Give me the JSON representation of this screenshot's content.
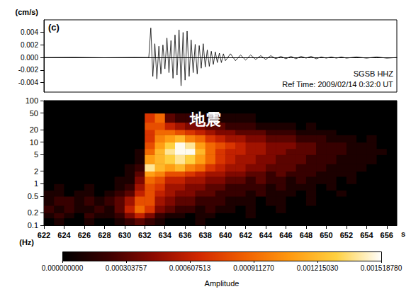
{
  "chart_data": [
    {
      "type": "line",
      "title": "(c)",
      "ylabel": "(cm/s)",
      "annotations": [
        "SGSB HHZ",
        "Ref Time: 2009/02/14 0:32:0 UT"
      ],
      "color": "#000000",
      "grid": false,
      "tick_labels": "y",
      "xlim": [
        622,
        657
      ],
      "ylim": [
        -0.0055,
        0.006
      ],
      "yticks": [
        -0.004,
        -0.002,
        {
          "value": 0,
          "label": "0.000"
        },
        0.002,
        0.004
      ],
      "x": [
        622,
        625,
        628,
        631,
        632.4,
        632.6,
        632.8,
        633.0,
        633.2,
        633.4,
        633.6,
        633.8,
        634.0,
        634.2,
        634.4,
        634.6,
        634.8,
        635.0,
        635.2,
        635.4,
        635.6,
        635.8,
        636.0,
        636.2,
        636.4,
        636.6,
        636.8,
        637.0,
        637.2,
        637.4,
        637.6,
        637.8,
        638.0,
        638.2,
        638.4,
        638.6,
        638.8,
        639.0,
        639.2,
        639.4,
        639.6,
        639.8,
        640.0,
        640.5,
        641.0,
        641.5,
        642.0,
        642.5,
        643.0,
        643.5,
        644.0,
        644.5,
        645.0,
        645.5,
        646.0,
        646.5,
        647.0,
        647.5,
        648.0,
        648.5,
        649.0,
        649.5,
        650.0,
        650.5,
        651.0,
        651.5,
        652.0,
        653.0,
        654.0,
        655.0,
        656.0,
        657.0
      ],
      "values": [
        0,
        3e-05,
        -3e-05,
        2e-05,
        0,
        0.0047,
        -0.003,
        0.0022,
        -0.0034,
        0.0018,
        -0.0026,
        0.002,
        -0.0018,
        0.0031,
        -0.0024,
        0.0027,
        -0.0033,
        0.0036,
        -0.0028,
        0.0044,
        -0.0045,
        0.004,
        -0.0036,
        0.0042,
        -0.003,
        0.0028,
        -0.0024,
        0.0021,
        -0.0026,
        0.0019,
        -0.0017,
        0.0022,
        -0.0015,
        0.0012,
        -0.0014,
        0.001,
        -0.0011,
        0.0009,
        -0.0008,
        0.0007,
        -0.0008,
        0.0006,
        -0.0005,
        0.0006,
        -0.0005,
        0.0004,
        -0.0004,
        0.0004,
        -0.0003,
        0.0003,
        -0.0003,
        0.0003,
        -0.0002,
        0.0002,
        -0.0002,
        0.0002,
        -0.0002,
        0.0002,
        -0.0001,
        0.0002,
        -0.0002,
        0.0001,
        -0.0001,
        0.0001,
        -0.0001,
        0.0001,
        -0.0001,
        0.0001,
        -0.0001,
        0.0001,
        -0.0001,
        0
      ]
    },
    {
      "type": "heatmap",
      "xlabel": "s",
      "ylabel": "(Hz)",
      "annotations": [
        "地震"
      ],
      "log": "y",
      "grid": false,
      "xlim": [
        622,
        657
      ],
      "xticks": [
        622,
        624,
        626,
        628,
        630,
        632,
        634,
        636,
        638,
        640,
        642,
        644,
        646,
        648,
        650,
        652,
        654,
        656
      ],
      "ylim": [
        0.1,
        100
      ],
      "yticks": [
        0.1,
        0.2,
        0.5,
        1,
        2,
        5,
        10,
        20,
        50,
        100
      ],
      "time_edges": [
        622,
        623,
        624,
        625,
        626,
        627,
        628,
        629,
        630,
        631,
        632,
        633,
        634,
        635,
        636,
        637,
        638,
        639,
        640,
        641,
        642,
        643,
        644,
        645,
        646,
        647,
        648,
        649,
        650,
        651,
        652,
        653,
        654,
        655,
        656,
        657
      ],
      "freq_edges": [
        0.1,
        0.15,
        0.2,
        0.3,
        0.5,
        0.7,
        1,
        1.5,
        2,
        3,
        5,
        7,
        10,
        15,
        20,
        30,
        50,
        100
      ],
      "cells": [
        [
          0,
          0.0001,
          0,
          0,
          0.0001,
          0,
          0,
          0.0001,
          0.0002,
          0.0003,
          0.0002,
          0.0001,
          0,
          0,
          0,
          0.0001,
          0,
          0,
          0,
          0,
          0,
          0,
          0,
          0,
          0,
          0,
          0,
          0,
          0,
          0,
          0,
          0,
          0,
          0,
          0
        ],
        [
          0.0001,
          0.0002,
          0.0001,
          0,
          0.0002,
          0.0001,
          0.0001,
          0.0002,
          0.0004,
          0.0006,
          0.0004,
          0.0002,
          0.0001,
          0.0001,
          0,
          0.0001,
          0.0001,
          0,
          0,
          0,
          0.0001,
          0,
          0,
          0,
          0,
          0,
          0,
          0,
          0,
          0,
          0,
          0,
          0,
          0,
          0
        ],
        [
          0.0002,
          0.0001,
          0.0002,
          0.0001,
          0.0001,
          0.0002,
          0.0001,
          0.0003,
          0.0006,
          0.0009,
          0.0007,
          0.0004,
          0.0003,
          0.0002,
          0.0002,
          0.0001,
          0.0002,
          0.0001,
          0.0001,
          0,
          0.0001,
          0,
          0,
          0.0001,
          0,
          0,
          0,
          0,
          0,
          0,
          0,
          0,
          0,
          0,
          0
        ],
        [
          0.0001,
          0.0002,
          0.0002,
          0.0001,
          0.0002,
          0.0001,
          0.0002,
          0.0003,
          0.0005,
          0.0008,
          0.0008,
          0.0005,
          0.0004,
          0.0003,
          0.0003,
          0.0002,
          0.0002,
          0.0002,
          0.0001,
          0.0001,
          0.0001,
          0,
          0.0001,
          0.0001,
          0,
          0,
          0.0001,
          0,
          0,
          0,
          0,
          0,
          0,
          0,
          0
        ],
        [
          0.0001,
          0.0001,
          0,
          0.0001,
          0.0001,
          0,
          0.0001,
          0.0002,
          0.0003,
          0.0006,
          0.0008,
          0.0006,
          0.0005,
          0.0004,
          0.0004,
          0.0003,
          0.0003,
          0.0002,
          0.0002,
          0.0002,
          0.0001,
          0.0002,
          0.0001,
          0.0001,
          0.0001,
          0,
          0.0001,
          0,
          0,
          0.0001,
          0,
          0,
          0,
          0,
          0
        ],
        [
          0,
          0.0001,
          0,
          0,
          0.0001,
          0,
          0,
          0.0001,
          0.0002,
          0.0005,
          0.0008,
          0.0007,
          0.0005,
          0.0005,
          0.0004,
          0.0004,
          0.0003,
          0.0003,
          0.0002,
          0.0002,
          0.0002,
          0.0002,
          0.0001,
          0.0002,
          0.0001,
          0.0001,
          0.0001,
          0,
          0.0001,
          0,
          0,
          0,
          0,
          0,
          0
        ],
        [
          0,
          0,
          0,
          0,
          0,
          0,
          0,
          0.0001,
          0.0001,
          0.0004,
          0.0009,
          0.0008,
          0.0006,
          0.0006,
          0.0005,
          0.0005,
          0.0004,
          0.0004,
          0.0003,
          0.0003,
          0.0002,
          0.0003,
          0.0002,
          0.0002,
          0.0001,
          0.0002,
          0.0001,
          0.0001,
          0.0001,
          0,
          0.0001,
          0,
          0,
          0,
          0
        ],
        [
          0,
          0,
          0,
          0,
          0,
          0,
          0,
          0,
          0.0001,
          0.0003,
          0.0011,
          0.001,
          0.0008,
          0.0008,
          0.0007,
          0.0006,
          0.0005,
          0.0005,
          0.0004,
          0.0004,
          0.0003,
          0.0003,
          0.0002,
          0.0003,
          0.0002,
          0.0002,
          0.0002,
          0.0001,
          0.0001,
          0.0001,
          0.0001,
          0,
          0,
          0,
          0
        ],
        [
          0,
          0,
          0,
          0,
          0,
          0,
          0,
          0,
          0.0001,
          0.0002,
          0.0014,
          0.0012,
          0.0011,
          0.0012,
          0.001,
          0.0009,
          0.0007,
          0.0006,
          0.0005,
          0.0005,
          0.0004,
          0.0004,
          0.0003,
          0.0003,
          0.0003,
          0.0002,
          0.0002,
          0.0002,
          0.0001,
          0.0001,
          0.0001,
          0.0001,
          0,
          0,
          0
        ],
        [
          0,
          0,
          0,
          0,
          0,
          0,
          0,
          0,
          0,
          0.0001,
          0.0011,
          0.0012,
          0.0013,
          0.0014,
          0.0013,
          0.0011,
          0.0009,
          0.0007,
          0.0006,
          0.0005,
          0.0005,
          0.0004,
          0.0004,
          0.0003,
          0.0003,
          0.0003,
          0.0002,
          0.0002,
          0.0002,
          0.0001,
          0.0001,
          0.0001,
          0.0001,
          0,
          0
        ],
        [
          0,
          0,
          0,
          0,
          0,
          0,
          0,
          0,
          0,
          0.0001,
          0.0009,
          0.0012,
          0.0014,
          0.0015,
          0.0015,
          0.0012,
          0.0009,
          0.0007,
          0.0006,
          0.0006,
          0.0005,
          0.0005,
          0.0004,
          0.0004,
          0.0003,
          0.0003,
          0.0003,
          0.0002,
          0.0002,
          0.0002,
          0.0001,
          0.0001,
          0.0001,
          0.0001,
          0
        ],
        [
          0,
          0,
          0,
          0,
          0,
          0,
          0,
          0,
          0,
          0,
          0.0008,
          0.0011,
          0.0013,
          0.0015,
          0.0014,
          0.0011,
          0.0009,
          0.0008,
          0.0007,
          0.0006,
          0.0005,
          0.0005,
          0.0004,
          0.0004,
          0.0004,
          0.0003,
          0.0003,
          0.0002,
          0.0002,
          0.0002,
          0.0001,
          0.0001,
          0.0001,
          0,
          0
        ],
        [
          0,
          0,
          0,
          0,
          0,
          0,
          0,
          0,
          0,
          0,
          0.0007,
          0.001,
          0.0011,
          0.0012,
          0.001,
          0.0009,
          0.0007,
          0.0006,
          0.0005,
          0.0005,
          0.0004,
          0.0004,
          0.0003,
          0.0003,
          0.0003,
          0.0002,
          0.0002,
          0.0002,
          0.0001,
          0.0001,
          0.0001,
          0,
          0.0001,
          0,
          0
        ],
        [
          0,
          0,
          0,
          0,
          0,
          0,
          0,
          0,
          0,
          0,
          0.0007,
          0.0009,
          0.0009,
          0.0008,
          0.0007,
          0.0006,
          0.0005,
          0.0004,
          0.0004,
          0.0003,
          0.0003,
          0.0003,
          0.0002,
          0.0002,
          0.0002,
          0.0001,
          0.0001,
          0.0001,
          0.0001,
          0,
          0,
          0,
          0,
          0,
          0
        ],
        [
          0,
          0,
          0,
          0,
          0,
          0,
          0,
          0,
          0,
          0,
          0.0008,
          0.0008,
          0.0006,
          0.0005,
          0.0004,
          0.0004,
          0.0003,
          0.0003,
          0.0002,
          0.0002,
          0.0002,
          0.0001,
          0.0001,
          0.0001,
          0.0001,
          0,
          0.0001,
          0,
          0,
          0,
          0,
          0,
          0,
          0,
          0
        ],
        [
          0,
          0,
          0,
          0,
          0,
          0,
          0,
          0,
          0,
          0,
          0.0007,
          0.0009,
          0.0003,
          0.0002,
          0.0002,
          0.0001,
          0.0001,
          0.0001,
          0.0001,
          0.0001,
          0.0001,
          0,
          0,
          0,
          0,
          0,
          0,
          0,
          0,
          0,
          0,
          0,
          0,
          0,
          0
        ],
        [
          0,
          0,
          0,
          0,
          0,
          0,
          0,
          0,
          0,
          0,
          0,
          0,
          0,
          0,
          0,
          0,
          0,
          0,
          0,
          0,
          0,
          0,
          0,
          0,
          0,
          0,
          0,
          0,
          0,
          0,
          0,
          0,
          0,
          0,
          0
        ]
      ],
      "colorbar": {
        "label": "Amplitude",
        "range": [
          0,
          0.00151878
        ],
        "ticks": [
          {
            "value": 0,
            "label": "0.000000000"
          },
          0.000303757,
          0.000607513,
          {
            "value": 0.00091127,
            "label": "0.000911270"
          },
          {
            "value": 0.00121503,
            "label": "0.001215030"
          },
          {
            "value": 0.00151878,
            "label": "0.001518780"
          }
        ]
      }
    }
  ]
}
